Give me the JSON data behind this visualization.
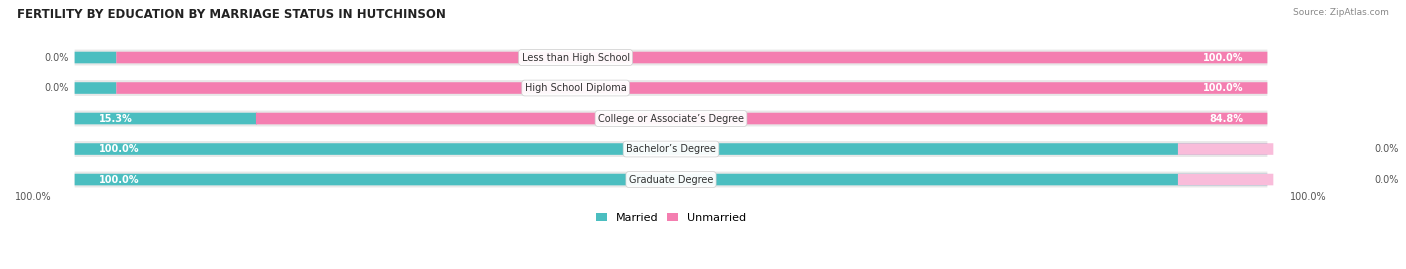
{
  "title": "FERTILITY BY EDUCATION BY MARRIAGE STATUS IN HUTCHINSON",
  "source": "Source: ZipAtlas.com",
  "categories": [
    "Less than High School",
    "High School Diploma",
    "College or Associate’s Degree",
    "Bachelor’s Degree",
    "Graduate Degree"
  ],
  "married": [
    0.0,
    0.0,
    15.3,
    100.0,
    100.0
  ],
  "unmarried": [
    100.0,
    100.0,
    84.8,
    0.0,
    0.0
  ],
  "married_color": "#4BBEC0",
  "unmarried_color": "#F47EB0",
  "unmarried_light_color": "#F9BCDA",
  "bar_bg_color": "#E8E8E8",
  "figsize": [
    14.06,
    2.69
  ],
  "dpi": 100,
  "title_fontsize": 8.5,
  "label_fontsize": 7,
  "category_fontsize": 7,
  "legend_fontsize": 8,
  "axis_label_fontsize": 7
}
